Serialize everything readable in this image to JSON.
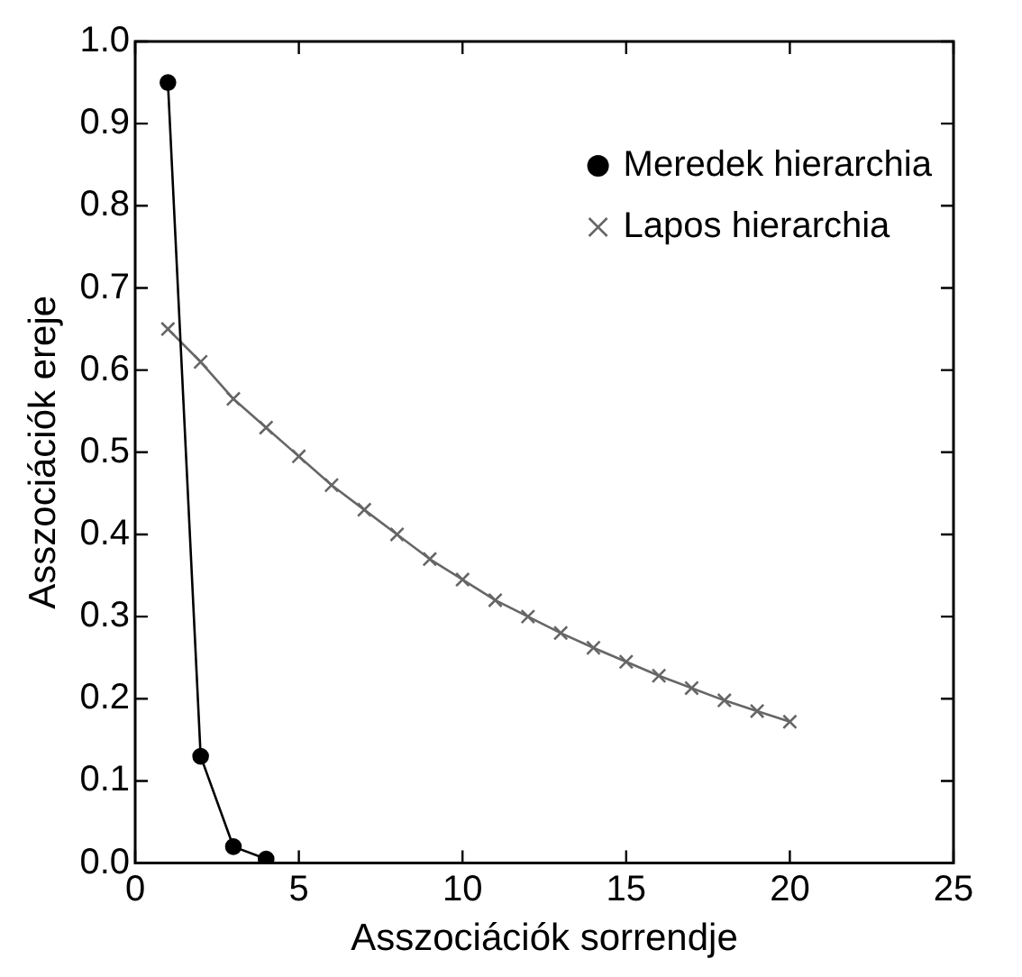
{
  "chart_data": {
    "type": "line",
    "xlabel": "Asszociációk sorrendje",
    "ylabel": "Asszociációk ereje",
    "xlim": [
      0,
      25
    ],
    "xticks": [
      0,
      5,
      10,
      15,
      20,
      25
    ],
    "ylim": [
      0,
      1
    ],
    "yticks": [
      {
        "value": 0,
        "label": "0.0"
      },
      0.1,
      0.2,
      0.3,
      0.4,
      0.5,
      0.6,
      0.7,
      0.8,
      0.9,
      {
        "value": 1,
        "label": "1.0"
      }
    ],
    "grid": false,
    "legend": "top right",
    "series": [
      {
        "name": "Meredek hierarchia",
        "color": "#000000",
        "marker": "circle",
        "x": [
          1,
          2,
          3,
          4
        ],
        "values": [
          0.95,
          0.13,
          0.02,
          0.005
        ]
      },
      {
        "name": "Lapos hierarchia",
        "color": "#666666",
        "marker": "cross",
        "x": [
          1,
          2,
          3,
          4,
          5,
          6,
          7,
          8,
          9,
          10,
          11,
          12,
          13,
          14,
          15,
          16,
          17,
          18,
          19,
          20
        ],
        "values": [
          0.65,
          0.61,
          0.565,
          0.53,
          0.495,
          0.46,
          0.43,
          0.4,
          0.37,
          0.345,
          0.32,
          0.3,
          0.28,
          0.262,
          0.245,
          0.228,
          0.213,
          0.198,
          0.185,
          0.172
        ]
      }
    ]
  }
}
